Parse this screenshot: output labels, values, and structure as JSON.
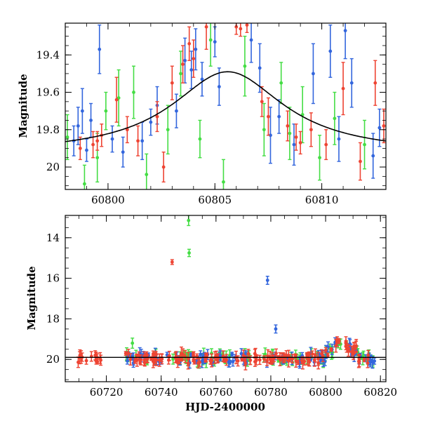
{
  "chart_data": [
    {
      "type": "scatter",
      "panel": "top",
      "xlabel": "",
      "ylabel": "Magnitude",
      "xlim": [
        60798,
        60813
      ],
      "ylim": [
        20.12,
        19.23
      ],
      "y_inverted": true,
      "x_ticks": [
        60800,
        60805,
        60810
      ],
      "y_ticks": [
        19.4,
        19.6,
        19.8,
        20
      ],
      "tick_labels_x": [
        "60800",
        "60805",
        "60810"
      ],
      "tick_labels_y": [
        "19.4",
        "19.6",
        "19.8",
        "20"
      ],
      "model_curve": {
        "color": "#000000",
        "peak_x": 60805.6,
        "peak_mag": 19.49,
        "base_mag": 19.93,
        "width": 3.2
      },
      "series": [
        {
          "color": "#3366dd",
          "points": [
            {
              "x": 60798.4,
              "y": 19.86,
              "err": 0.08
            },
            {
              "x": 60798.6,
              "y": 19.78,
              "err": 0.1
            },
            {
              "x": 60798.8,
              "y": 19.7,
              "err": 0.12
            },
            {
              "x": 60799.0,
              "y": 19.91,
              "err": 0.06
            },
            {
              "x": 60799.2,
              "y": 19.75,
              "err": 0.09
            },
            {
              "x": 60799.6,
              "y": 19.37,
              "err": 0.13
            },
            {
              "x": 60800.2,
              "y": 19.85,
              "err": 0.07
            },
            {
              "x": 60800.7,
              "y": 19.92,
              "err": 0.08
            },
            {
              "x": 60801.6,
              "y": 19.86,
              "err": 0.1
            },
            {
              "x": 60802.0,
              "y": 19.76,
              "err": 0.07
            },
            {
              "x": 60802.3,
              "y": 19.67,
              "err": 0.1
            },
            {
              "x": 60803.2,
              "y": 19.7,
              "err": 0.09
            },
            {
              "x": 60803.6,
              "y": 19.43,
              "err": 0.12
            },
            {
              "x": 60803.9,
              "y": 19.48,
              "err": 0.1
            },
            {
              "x": 60804.1,
              "y": 19.37,
              "err": 0.11
            },
            {
              "x": 60804.4,
              "y": 19.53,
              "err": 0.09
            },
            {
              "x": 60805.0,
              "y": 19.33,
              "err": 0.08
            },
            {
              "x": 60805.2,
              "y": 19.57,
              "err": 0.1
            },
            {
              "x": 60806.7,
              "y": 19.32,
              "err": 0.12
            },
            {
              "x": 60807.1,
              "y": 19.47,
              "err": 0.13
            },
            {
              "x": 60807.6,
              "y": 19.83,
              "err": 0.15
            },
            {
              "x": 60808.0,
              "y": 19.73,
              "err": 0.09
            },
            {
              "x": 60808.7,
              "y": 19.88,
              "err": 0.11
            },
            {
              "x": 60809.6,
              "y": 19.5,
              "err": 0.16
            },
            {
              "x": 60810.4,
              "y": 19.38,
              "err": 0.14
            },
            {
              "x": 60810.8,
              "y": 19.85,
              "err": 0.12
            },
            {
              "x": 60811.1,
              "y": 19.27,
              "err": 0.15
            },
            {
              "x": 60811.4,
              "y": 19.55,
              "err": 0.13
            },
            {
              "x": 60812.4,
              "y": 19.94,
              "err": 0.12
            },
            {
              "x": 60812.7,
              "y": 19.79,
              "err": 0.1
            }
          ]
        },
        {
          "color": "#44dd44",
          "points": [
            {
              "x": 60798.1,
              "y": 19.84,
              "err": 0.12
            },
            {
              "x": 60798.9,
              "y": 20.09,
              "err": 0.1
            },
            {
              "x": 60799.5,
              "y": 19.95,
              "err": 0.13
            },
            {
              "x": 60799.9,
              "y": 19.7,
              "err": 0.1
            },
            {
              "x": 60800.5,
              "y": 19.63,
              "err": 0.15
            },
            {
              "x": 60801.2,
              "y": 19.6,
              "err": 0.14
            },
            {
              "x": 60801.8,
              "y": 20.04,
              "err": 0.11
            },
            {
              "x": 60802.8,
              "y": 19.8,
              "err": 0.13
            },
            {
              "x": 60803.4,
              "y": 19.5,
              "err": 0.12
            },
            {
              "x": 60804.3,
              "y": 19.85,
              "err": 0.1
            },
            {
              "x": 60804.8,
              "y": 19.32,
              "err": 0.14
            },
            {
              "x": 60805.4,
              "y": 20.08,
              "err": 0.12
            },
            {
              "x": 60806.4,
              "y": 19.46,
              "err": 0.16
            },
            {
              "x": 60807.3,
              "y": 19.8,
              "err": 0.14
            },
            {
              "x": 60808.1,
              "y": 19.55,
              "err": 0.11
            },
            {
              "x": 60808.5,
              "y": 19.82,
              "err": 0.14
            },
            {
              "x": 60809.1,
              "y": 19.72,
              "err": 0.15
            },
            {
              "x": 60809.9,
              "y": 19.95,
              "err": 0.12
            },
            {
              "x": 60810.6,
              "y": 19.74,
              "err": 0.14
            },
            {
              "x": 60812.0,
              "y": 19.88,
              "err": 0.13
            }
          ]
        },
        {
          "color": "#ee4433",
          "points": [
            {
              "x": 60798.7,
              "y": 19.9,
              "err": 0.06
            },
            {
              "x": 60799.3,
              "y": 19.88,
              "err": 0.07
            },
            {
              "x": 60799.5,
              "y": 19.86,
              "err": 0.05
            },
            {
              "x": 60799.7,
              "y": 19.83,
              "err": 0.06
            },
            {
              "x": 60800.4,
              "y": 19.64,
              "err": 0.12
            },
            {
              "x": 60800.9,
              "y": 19.8,
              "err": 0.07
            },
            {
              "x": 60801.4,
              "y": 19.86,
              "err": 0.08
            },
            {
              "x": 60802.3,
              "y": 19.73,
              "err": 0.08
            },
            {
              "x": 60802.6,
              "y": 20.0,
              "err": 0.08
            },
            {
              "x": 60803.0,
              "y": 19.55,
              "err": 0.09
            },
            {
              "x": 60803.5,
              "y": 19.45,
              "err": 0.1
            },
            {
              "x": 60803.8,
              "y": 19.34,
              "err": 0.09
            },
            {
              "x": 60804.0,
              "y": 19.42,
              "err": 0.1
            },
            {
              "x": 60804.6,
              "y": 19.25,
              "err": 0.12
            },
            {
              "x": 60806.0,
              "y": 19.25,
              "err": 0.04
            },
            {
              "x": 60806.2,
              "y": 19.26,
              "err": 0.04
            },
            {
              "x": 60806.5,
              "y": 19.24,
              "err": 0.04
            },
            {
              "x": 60807.2,
              "y": 19.65,
              "err": 0.08
            },
            {
              "x": 60807.5,
              "y": 19.73,
              "err": 0.1
            },
            {
              "x": 60808.4,
              "y": 19.78,
              "err": 0.08
            },
            {
              "x": 60808.8,
              "y": 19.84,
              "err": 0.07
            },
            {
              "x": 60809.0,
              "y": 19.87,
              "err": 0.06
            },
            {
              "x": 60809.5,
              "y": 19.8,
              "err": 0.09
            },
            {
              "x": 60810.2,
              "y": 19.88,
              "err": 0.08
            },
            {
              "x": 60811.0,
              "y": 19.58,
              "err": 0.14
            },
            {
              "x": 60811.8,
              "y": 19.97,
              "err": 0.1
            },
            {
              "x": 60812.5,
              "y": 19.55,
              "err": 0.12
            },
            {
              "x": 60812.9,
              "y": 19.78,
              "err": 0.09
            }
          ]
        }
      ]
    },
    {
      "type": "scatter",
      "panel": "bottom",
      "xlabel": "HJD-2400000",
      "ylabel": "Magnitude",
      "xlim": [
        60705,
        60822
      ],
      "ylim": [
        21.1,
        12.9
      ],
      "y_inverted": true,
      "x_ticks": [
        60720,
        60740,
        60760,
        60780,
        60800,
        60820
      ],
      "y_ticks": [
        14,
        16,
        18,
        20
      ],
      "tick_labels_x": [
        "60720",
        "60740",
        "60760",
        "60780",
        "60800",
        "60820"
      ],
      "tick_labels_y": [
        "14",
        "16",
        "18",
        "20"
      ],
      "model_line": {
        "color": "#000000",
        "mag": 19.9
      },
      "outliers": [
        {
          "color": "#44dd44",
          "x": 60750.0,
          "y": 13.15,
          "err": 0.25
        },
        {
          "color": "#44dd44",
          "x": 60750.2,
          "y": 14.75,
          "err": 0.18
        },
        {
          "color": "#ee4433",
          "x": 60744.0,
          "y": 15.2,
          "err": 0.12
        },
        {
          "color": "#3366dd",
          "x": 60778.8,
          "y": 16.1,
          "err": 0.2
        },
        {
          "color": "#3366dd",
          "x": 60781.8,
          "y": 18.5,
          "err": 0.2
        },
        {
          "color": "#44dd44",
          "x": 60729.5,
          "y": 19.2,
          "err": 0.25
        }
      ],
      "series_colors": [
        "#44dd44",
        "#3366dd",
        "#ee4433"
      ]
    }
  ]
}
